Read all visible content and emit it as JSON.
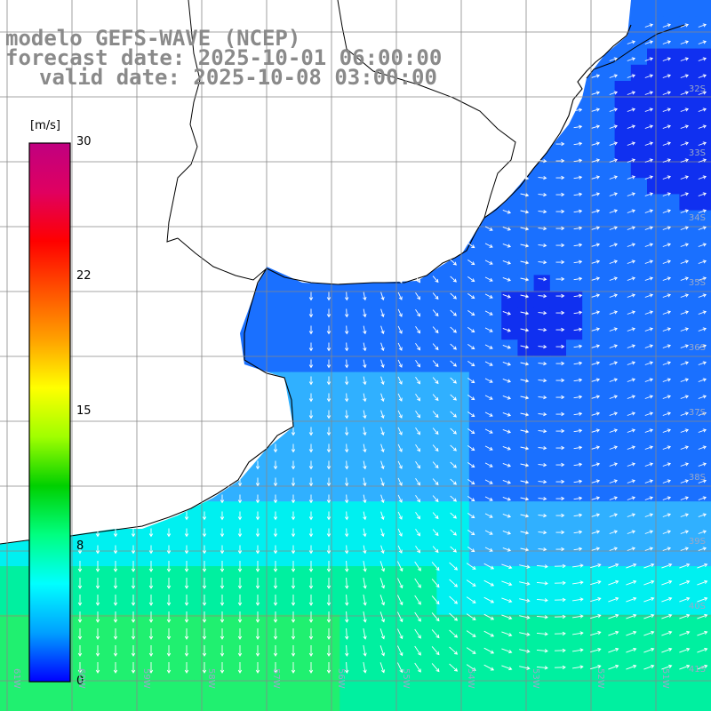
{
  "title": {
    "line1": "modelo GEFS-WAVE (NCEP)",
    "line2": "forecast date: 2025-10-01 06:00:00",
    "line3": "valid date: 2025-10-08 03:00:00"
  },
  "colorbar": {
    "unit": "[m/s]",
    "ticks": [
      "30",
      "22",
      "15",
      "8",
      "0"
    ],
    "tick_values": [
      30,
      22,
      15,
      8,
      0
    ],
    "range": [
      0,
      30
    ],
    "colors": [
      "#0000ff",
      "#00a0ff",
      "#00ffff",
      "#00ff80",
      "#00d000",
      "#a0ff00",
      "#ffff00",
      "#ffa000",
      "#ff5000",
      "#ff0000",
      "#e00060",
      "#c00080"
    ]
  },
  "lat_labels": [
    "32S",
    "33S",
    "34S",
    "35S",
    "36S",
    "37S",
    "38S",
    "39S",
    "40S",
    "41S"
  ],
  "lon_labels": [
    "61W",
    "60W",
    "59W",
    "58W",
    "57W",
    "56W",
    "55W",
    "54W",
    "53W",
    "52W",
    "51W"
  ],
  "field": {
    "variable": "wind speed",
    "map_colors": {
      "deep_blue": "#1030f0",
      "mid_blue": "#1a70ff",
      "light_blue": "#30b0ff",
      "cyan": "#00f0f0",
      "green_cyan": "#00f0a0",
      "green": "#20f070"
    }
  }
}
